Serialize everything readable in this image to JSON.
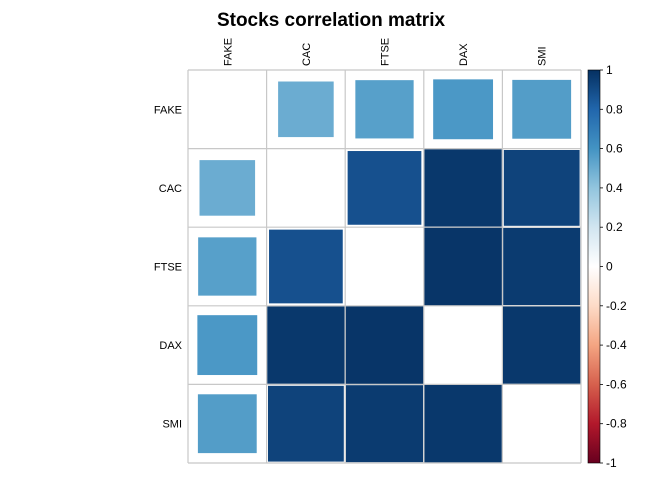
{
  "chart_data": {
    "type": "heatmap",
    "title": "Stocks correlation matrix",
    "labels": [
      "FAKE",
      "CAC",
      "FTSE",
      "DAX",
      "SMI"
    ],
    "matrix": [
      [
        1.0,
        0.5,
        0.55,
        0.58,
        0.56
      ],
      [
        0.5,
        1.0,
        0.88,
        0.97,
        0.93
      ],
      [
        0.55,
        0.88,
        1.0,
        0.98,
        0.96
      ],
      [
        0.58,
        0.97,
        0.98,
        1.0,
        0.97
      ],
      [
        0.56,
        0.93,
        0.96,
        0.97,
        1.0
      ]
    ],
    "diagonal_shown": false,
    "colorbar": {
      "range": [
        -1,
        1
      ],
      "ticks": [
        "1",
        "0.8",
        "0.6",
        "0.4",
        "0.2",
        "0",
        "-0.2",
        "-0.4",
        "-0.6",
        "-0.8",
        "-1"
      ],
      "colors": [
        "#67001f",
        "#b2182b",
        "#d6604d",
        "#f4a582",
        "#fddbc7",
        "#ffffff",
        "#d1e5f0",
        "#92c5de",
        "#4393c3",
        "#2166ac",
        "#053061"
      ]
    },
    "grid": true
  }
}
